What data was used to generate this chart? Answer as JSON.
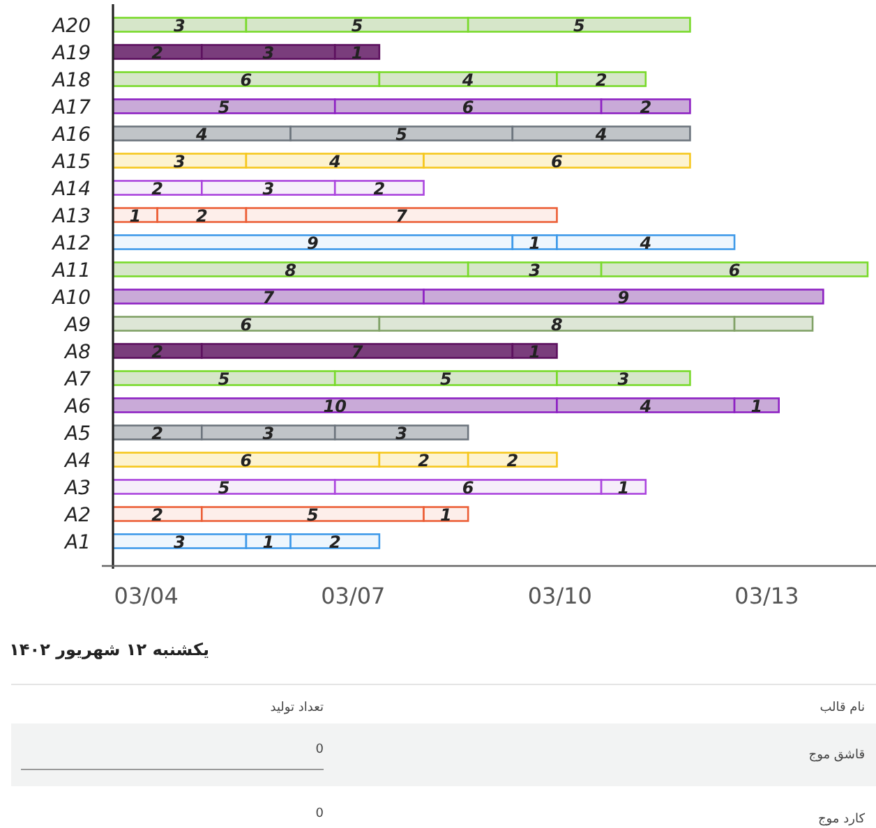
{
  "chart_data": [
    {
      "type": "bar",
      "orientation": "horizontal",
      "stacked": true,
      "categories": [
        "A20",
        "A19",
        "A18",
        "A17",
        "A16",
        "A15",
        "A14",
        "A13",
        "A12",
        "A11",
        "A10",
        "A9",
        "A8",
        "A7",
        "A6",
        "A5",
        "A4",
        "A3",
        "A2",
        "A1"
      ],
      "xlim": [
        0,
        17
      ],
      "annotations": [
        "03/04",
        "03/07",
        "03/10",
        "03/13"
      ],
      "series": [
        {
          "colors": [
            "#d6e6c9",
            "#7a3d7c",
            "#d6e6c9",
            "#c9aad8",
            "#c0c4c8",
            "#fdf3d0",
            "#f6eefa",
            "#fdeeea",
            "#eef6fd",
            "#d6e6c9",
            "#c9aad8",
            "#dde6d6",
            "#7a3d7c",
            "#d6e6c9",
            "#c9aad8",
            "#c0c4c8",
            "#fdf3d0",
            "#f6eefa",
            "#fdeeea",
            "#eef6fd"
          ],
          "values": [
            3,
            2,
            6,
            5,
            4,
            3,
            2,
            1,
            9,
            8,
            7,
            6,
            2,
            5,
            10,
            2,
            6,
            5,
            2,
            3
          ],
          "value_labels": [
            "3",
            "2",
            "6",
            "5",
            "4",
            "3",
            "2",
            "1",
            "9",
            "8",
            "7",
            "6",
            "2",
            "5",
            "10",
            "2",
            "6",
            "5",
            "2",
            "3"
          ]
        },
        {
          "colors": [
            "#d6e6c9",
            "#7a3d7c",
            "#d6e6c9",
            "#c9aad8",
            "#c0c4c8",
            "#fdf3d0",
            "#f6eefa",
            "#fdeeea",
            "#eef6fd",
            "#d6e6c9",
            "#c9aad8",
            "#dde6d6",
            "#7a3d7c",
            "#d6e6c9",
            "#c9aad8",
            "#c0c4c8",
            "#fdf3d0",
            "#f6eefa",
            "#fdeeea",
            "#eef6fd"
          ],
          "values": [
            5,
            3,
            4,
            6,
            5,
            4,
            3,
            2,
            1,
            3,
            9,
            8,
            7,
            5,
            4,
            3,
            2,
            6,
            5,
            1
          ],
          "value_labels": [
            "5",
            "3",
            "4",
            "6",
            "5",
            "4",
            "3",
            "2",
            "1",
            "3",
            "9",
            "8",
            "7",
            "5",
            "4",
            "3",
            "2",
            "6",
            "5",
            "1"
          ]
        },
        {
          "colors": [
            "#d6e6c9",
            "#7a3d7c",
            "#d6e6c9",
            "#c9aad8",
            "#c0c4c8",
            "#fdf3d0",
            "#f6eefa",
            "#fdeeea",
            "#eef6fd",
            "#d6e6c9",
            "#c9aad8",
            "#dde6d6",
            "#7a3d7c",
            "#d6e6c9",
            "#c9aad8",
            "#c0c4c8",
            "#fdf3d0",
            "#f6eefa",
            "#fdeeea",
            "#eef6fd"
          ],
          "values": [
            5,
            1,
            2,
            2,
            4,
            6,
            2,
            7,
            4,
            6,
            null,
            1.76,
            1,
            3,
            1,
            3,
            2,
            1,
            1,
            2
          ],
          "value_labels": [
            "5",
            "1",
            "2",
            "2",
            "4",
            "6",
            "2",
            "7",
            "4",
            "6",
            null,
            null,
            "1",
            "3",
            "1",
            "3",
            "2",
            "1",
            "1",
            "2"
          ]
        }
      ]
    },
    {
      "type": "other",
      "title": "یکشنبه ۱۲ شهریور ۱۴۰۲",
      "annotations": [
        "نام قالب",
        "تعداد تولید"
      ],
      "categories": [
        "قاشق موج",
        "کارد موج"
      ],
      "values": [
        0,
        0
      ],
      "data_labels": true
    }
  ]
}
